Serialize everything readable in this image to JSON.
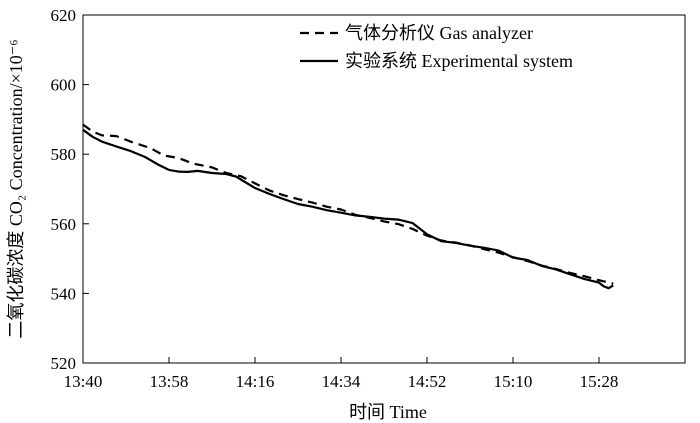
{
  "chart_data": {
    "type": "line",
    "title": "",
    "xlabel": "时间 Time",
    "ylabel": "二氧化碳浓度 CO₂ Concentration/×10⁻⁶",
    "x_tick_labels": [
      "13:40",
      "13:58",
      "14:16",
      "14:34",
      "14:52",
      "15:10",
      "15:28"
    ],
    "xlim": [
      "13:40",
      "15:46"
    ],
    "y_ticks": [
      520,
      540,
      560,
      580,
      600,
      620
    ],
    "ylim": [
      520,
      620
    ],
    "grid": false,
    "legend_position": "top-right",
    "series": [
      {
        "name": "气体分析仪 Gas analyzer",
        "style": "dashed",
        "color": "#000000",
        "points": [
          [
            "13:40",
            588.5
          ],
          [
            "13:42",
            586.5
          ],
          [
            "13:44",
            585.4
          ],
          [
            "13:47",
            585.2
          ],
          [
            "13:50",
            583.6
          ],
          [
            "13:54",
            581.8
          ],
          [
            "13:57",
            579.6
          ],
          [
            "14:00",
            578.9
          ],
          [
            "14:03",
            577.3
          ],
          [
            "14:07",
            576.2
          ],
          [
            "14:10",
            574.6
          ],
          [
            "14:13",
            573.7
          ],
          [
            "14:16",
            571.6
          ],
          [
            "14:19",
            569.6
          ],
          [
            "14:22",
            568.2
          ],
          [
            "14:25",
            567.1
          ],
          [
            "14:28",
            566.1
          ],
          [
            "14:31",
            564.9
          ],
          [
            "14:34",
            564.1
          ],
          [
            "14:37",
            562.6
          ],
          [
            "14:40",
            561.7
          ],
          [
            "14:43",
            560.7
          ],
          [
            "14:46",
            559.9
          ],
          [
            "14:49",
            558.5
          ],
          [
            "14:52",
            556.6
          ],
          [
            "14:55",
            555.2
          ],
          [
            "14:58",
            554.6
          ],
          [
            "15:01",
            553.8
          ],
          [
            "15:04",
            552.7
          ],
          [
            "15:07",
            551.7
          ],
          [
            "15:10",
            550.4
          ],
          [
            "15:13",
            549.3
          ],
          [
            "15:16",
            548.0
          ],
          [
            "15:19",
            547.0
          ],
          [
            "15:22",
            545.9
          ],
          [
            "15:25",
            544.9
          ],
          [
            "15:28",
            543.8
          ],
          [
            "15:31",
            542.8
          ]
        ]
      },
      {
        "name": "实验系统 Experimental system",
        "style": "solid",
        "color": "#000000",
        "points": [
          [
            "13:40",
            587.0
          ],
          [
            "13:42",
            585.0
          ],
          [
            "13:44",
            583.6
          ],
          [
            "13:47",
            582.2
          ],
          [
            "13:50",
            580.9
          ],
          [
            "13:53",
            579.2
          ],
          [
            "13:56",
            576.8
          ],
          [
            "13:58",
            575.5
          ],
          [
            "14:00",
            575.0
          ],
          [
            "14:02",
            574.9
          ],
          [
            "14:04",
            575.2
          ],
          [
            "14:07",
            574.6
          ],
          [
            "14:10",
            574.3
          ],
          [
            "14:12",
            573.6
          ],
          [
            "14:16",
            570.3
          ],
          [
            "14:19",
            568.6
          ],
          [
            "14:22",
            567.1
          ],
          [
            "14:25",
            565.7
          ],
          [
            "14:28",
            564.9
          ],
          [
            "14:31",
            563.9
          ],
          [
            "14:34",
            563.2
          ],
          [
            "14:37",
            562.4
          ],
          [
            "14:40",
            562.0
          ],
          [
            "14:43",
            561.5
          ],
          [
            "14:46",
            561.2
          ],
          [
            "14:49",
            560.2
          ],
          [
            "14:52",
            557.0
          ],
          [
            "14:55",
            555.0
          ],
          [
            "14:58",
            554.5
          ],
          [
            "15:01",
            553.7
          ],
          [
            "15:04",
            553.1
          ],
          [
            "15:07",
            552.3
          ],
          [
            "15:10",
            550.3
          ],
          [
            "15:13",
            549.6
          ],
          [
            "15:16",
            547.9
          ],
          [
            "15:19",
            546.9
          ],
          [
            "15:22",
            545.5
          ],
          [
            "15:25",
            544.1
          ],
          [
            "15:28",
            543.1
          ],
          [
            "15:29",
            542.0
          ],
          [
            "15:30",
            541.5
          ],
          [
            "15:31",
            542.3
          ]
        ]
      }
    ]
  }
}
